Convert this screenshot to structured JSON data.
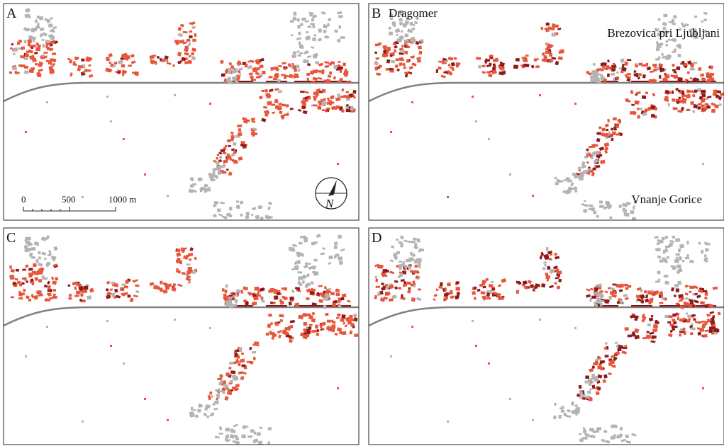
{
  "panels": [
    {
      "label": "A"
    },
    {
      "label": "B"
    },
    {
      "label": "C"
    },
    {
      "label": "D"
    }
  ],
  "place_names": [
    "Dragomer",
    "Brezovica pri Ljubljani",
    "Vnanje Gorice"
  ],
  "scale_bar": {
    "labels": [
      "0",
      "500",
      "1000 m"
    ]
  },
  "north_arrow": "N"
}
